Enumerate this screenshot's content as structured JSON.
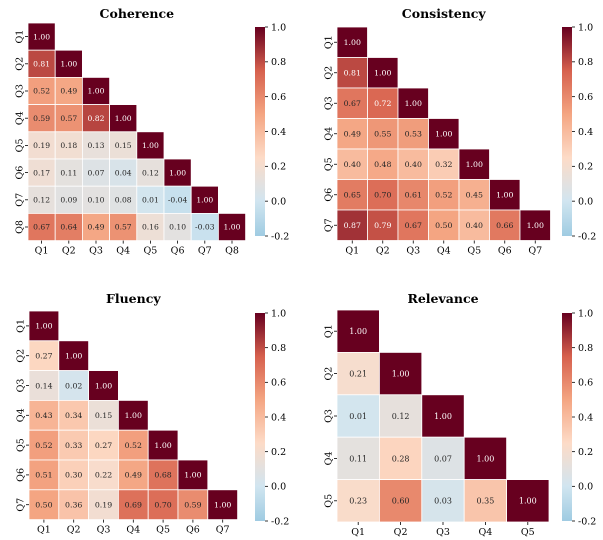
{
  "chart_data": [
    {
      "type": "heatmap",
      "title": "Coherence",
      "labels": [
        "Q1",
        "Q2",
        "Q3",
        "Q4",
        "Q5",
        "Q6",
        "Q7",
        "Q8"
      ],
      "values": [
        [
          1.0
        ],
        [
          0.81,
          1.0
        ],
        [
          0.52,
          0.49,
          1.0
        ],
        [
          0.59,
          0.57,
          0.82,
          1.0
        ],
        [
          0.19,
          0.18,
          0.13,
          0.15,
          1.0
        ],
        [
          0.17,
          0.11,
          0.07,
          0.04,
          0.12,
          1.0
        ],
        [
          0.12,
          0.09,
          0.1,
          0.08,
          0.01,
          -0.04,
          1.0
        ],
        [
          0.67,
          0.64,
          0.49,
          0.57,
          0.16,
          0.1,
          -0.03,
          1.0
        ]
      ],
      "colorbar": {
        "range": [
          -0.2,
          1.0
        ],
        "ticks": [
          -0.2,
          0.0,
          0.2,
          0.4,
          0.6,
          0.8,
          1.0
        ]
      }
    },
    {
      "type": "heatmap",
      "title": "Consistency",
      "labels": [
        "Q1",
        "Q2",
        "Q3",
        "Q4",
        "Q5",
        "Q6",
        "Q7"
      ],
      "values": [
        [
          1.0
        ],
        [
          0.81,
          1.0
        ],
        [
          0.67,
          0.72,
          1.0
        ],
        [
          0.49,
          0.55,
          0.53,
          1.0
        ],
        [
          0.4,
          0.48,
          0.4,
          0.32,
          1.0
        ],
        [
          0.65,
          0.7,
          0.61,
          0.52,
          0.45,
          1.0
        ],
        [
          0.87,
          0.79,
          0.67,
          0.5,
          0.4,
          0.66,
          1.0
        ]
      ],
      "colorbar": {
        "range": [
          -0.2,
          1.0
        ],
        "ticks": [
          -0.2,
          0.0,
          0.2,
          0.4,
          0.6,
          0.8,
          1.0
        ]
      }
    },
    {
      "type": "heatmap",
      "title": "Fluency",
      "labels": [
        "Q1",
        "Q2",
        "Q3",
        "Q4",
        "Q5",
        "Q6",
        "Q7"
      ],
      "values": [
        [
          1.0
        ],
        [
          0.27,
          1.0
        ],
        [
          0.14,
          0.02,
          1.0
        ],
        [
          0.43,
          0.34,
          0.15,
          1.0
        ],
        [
          0.52,
          0.33,
          0.27,
          0.52,
          1.0
        ],
        [
          0.51,
          0.3,
          0.22,
          0.49,
          0.68,
          1.0
        ],
        [
          0.5,
          0.36,
          0.19,
          0.69,
          0.7,
          0.59,
          1.0
        ]
      ],
      "colorbar": {
        "range": [
          -0.2,
          1.0
        ],
        "ticks": [
          -0.2,
          0.0,
          0.2,
          0.4,
          0.6,
          0.8,
          1.0
        ]
      }
    },
    {
      "type": "heatmap",
      "title": "Relevance",
      "labels": [
        "Q1",
        "Q2",
        "Q3",
        "Q4",
        "Q5"
      ],
      "values": [
        [
          1.0
        ],
        [
          0.21,
          1.0
        ],
        [
          0.01,
          0.12,
          1.0
        ],
        [
          0.11,
          0.28,
          0.07,
          1.0
        ],
        [
          0.23,
          0.6,
          0.03,
          0.35,
          1.0
        ]
      ],
      "colorbar": {
        "range": [
          -0.2,
          1.0
        ],
        "ticks": [
          -0.2,
          0.0,
          0.2,
          0.4,
          0.6,
          0.8,
          1.0
        ]
      }
    }
  ]
}
